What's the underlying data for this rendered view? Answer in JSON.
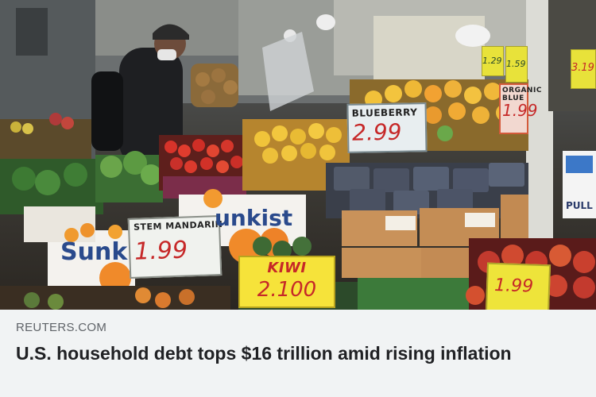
{
  "photo": {
    "description_icon": "market-photo",
    "signs": {
      "blueberry": {
        "name": "BLUEBERRY",
        "price": "2.99"
      },
      "mandarin": {
        "name": "STEM MANDARIN",
        "price": "1.99"
      },
      "kiwi": {
        "name": "KIWI",
        "price": "2.100"
      },
      "organic": {
        "name": "ORGANIC BLUE",
        "price": "1.99"
      },
      "yellow_a": "1.29",
      "yellow_b": "1.59",
      "yellow_c": "3.19",
      "right_small": "1.99"
    },
    "crate_text": {
      "sunkist_front": "Sunk",
      "sunkist_back": "unkist",
      "side_sign": "PULL"
    }
  },
  "caption": {
    "source": "REUTERS.COM",
    "headline": "U.S. household debt tops $16 trillion amid rising inflation"
  }
}
